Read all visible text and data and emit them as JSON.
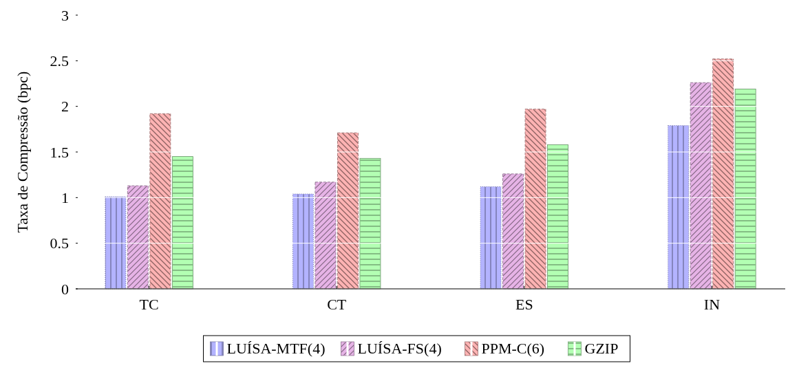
{
  "chart_data": {
    "type": "bar",
    "ylabel": "Taxa de Compressão (bpc)",
    "categories": [
      "TC",
      "CT",
      "ES",
      "IN"
    ],
    "series": [
      {
        "name": "LUÍSA-MTF(4)",
        "color": "#b3b3ff",
        "values": [
          1.01,
          1.04,
          1.12,
          1.79
        ]
      },
      {
        "name": "LUÍSA-FS(4)",
        "color": "#e6b3e6",
        "values": [
          1.13,
          1.17,
          1.26,
          2.26
        ]
      },
      {
        "name": "PPM-C(6)",
        "color": "#ffb3b3",
        "values": [
          1.92,
          1.71,
          1.97,
          2.52
        ]
      },
      {
        "name": "GZIP",
        "color": "#b3ffb3",
        "values": [
          1.45,
          1.43,
          1.58,
          2.19
        ]
      }
    ],
    "ylim": [
      0,
      3
    ],
    "yticks": [
      0,
      0.5,
      1,
      1.5,
      2,
      2.5,
      3
    ],
    "grid": "y",
    "legend": "bottom"
  }
}
